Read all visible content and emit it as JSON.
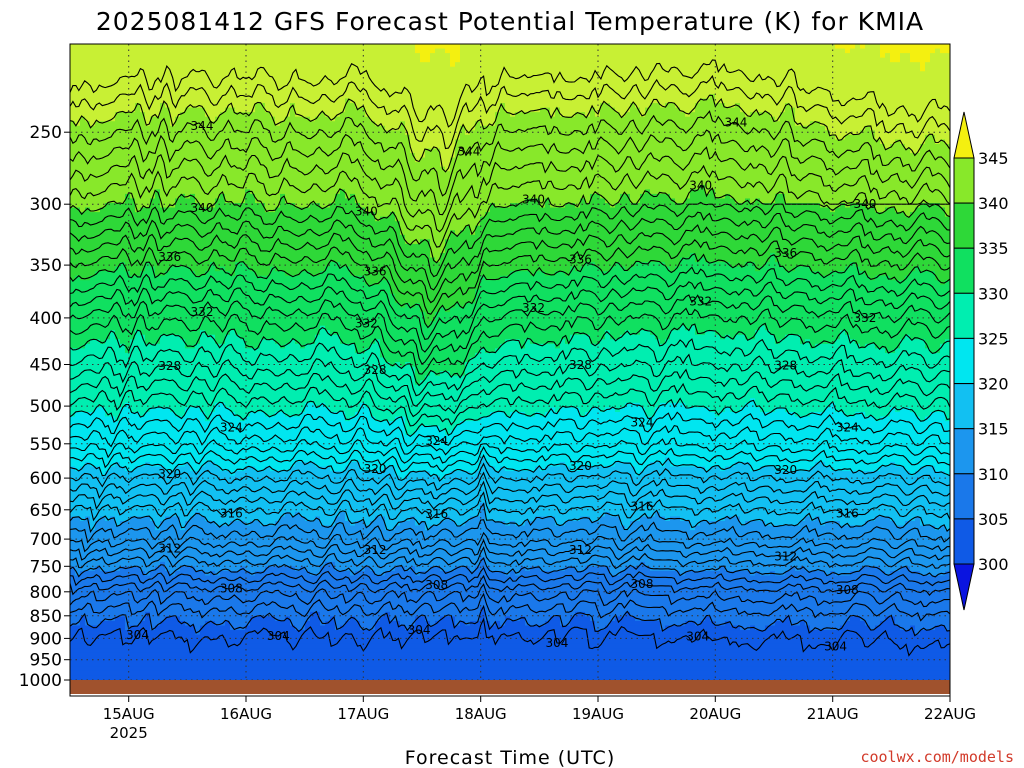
{
  "chart_data": {
    "type": "heatmap",
    "title": "2025081412 GFS Forecast Potential Temperature (K) for KMIA",
    "xlabel": "Forecast Time (UTC)",
    "ylabel": "",
    "x_ticks": [
      "15AUG",
      "16AUG",
      "17AUG",
      "18AUG",
      "19AUG",
      "20AUG",
      "21AUG",
      "22AUG"
    ],
    "x_tick_year": "2025",
    "x_range": [
      "2025-08-14 12Z",
      "2025-08-22 00Z"
    ],
    "y_ticks": [
      250,
      300,
      350,
      400,
      450,
      500,
      550,
      600,
      650,
      700,
      750,
      800,
      850,
      900,
      950,
      1000
    ],
    "y_range": [
      200,
      1000
    ],
    "y_scale": "log-pressure",
    "grid": true,
    "colorbar": {
      "ticks": [
        300,
        305,
        310,
        315,
        320,
        325,
        330,
        335,
        340,
        345
      ],
      "bins": [
        {
          "min": 295,
          "max": 300,
          "color": "#0a14e0"
        },
        {
          "min": 300,
          "max": 305,
          "color": "#0f5ae6"
        },
        {
          "min": 305,
          "max": 310,
          "color": "#1a78ea"
        },
        {
          "min": 310,
          "max": 315,
          "color": "#1c96ee"
        },
        {
          "min": 315,
          "max": 320,
          "color": "#12c0f2"
        },
        {
          "min": 320,
          "max": 325,
          "color": "#00e6f0"
        },
        {
          "min": 325,
          "max": 330,
          "color": "#00eeb0"
        },
        {
          "min": 330,
          "max": 335,
          "color": "#10e060"
        },
        {
          "min": 335,
          "max": 340,
          "color": "#2ed838"
        },
        {
          "min": 340,
          "max": 345,
          "color": "#88e82a"
        },
        {
          "min": 345,
          "max": 350,
          "color": "#c8f034"
        },
        {
          "min": 350,
          "max": 355,
          "color": "#f4f010"
        }
      ]
    },
    "profile": {
      "pressure": [
        1000,
        950,
        900,
        850,
        800,
        750,
        700,
        650,
        600,
        550,
        500,
        450,
        400,
        350,
        300,
        250,
        200
      ],
      "theta": [
        301.5,
        303,
        304,
        305.5,
        307.5,
        310.5,
        313.5,
        316,
        319,
        322.5,
        325.5,
        328.5,
        331.5,
        335.5,
        340,
        344,
        349
      ]
    },
    "contours": [
      {
        "level": 304,
        "labels": [
          "304",
          "304",
          "304",
          "304",
          "304",
          "304"
        ]
      },
      {
        "level": 308,
        "labels": [
          "308",
          "308",
          "308",
          "308"
        ]
      },
      {
        "level": 312,
        "labels": [
          "312",
          "312",
          "312",
          "312"
        ]
      },
      {
        "level": 316,
        "labels": [
          "316",
          "316",
          "316",
          "316"
        ]
      },
      {
        "level": 320,
        "labels": [
          "320",
          "320",
          "320",
          "320"
        ]
      },
      {
        "level": 324,
        "labels": [
          "324",
          "324",
          "324",
          "324"
        ]
      },
      {
        "level": 328,
        "labels": [
          "328",
          "328",
          "328",
          "328"
        ]
      },
      {
        "level": 332,
        "labels": [
          "332",
          "332",
          "332",
          "332",
          "332"
        ]
      },
      {
        "level": 336,
        "labels": [
          "336",
          "336",
          "336",
          "336"
        ]
      },
      {
        "level": 340,
        "labels": [
          "340",
          "340",
          "340",
          "340",
          "340"
        ]
      },
      {
        "level": 344,
        "labels": [
          "344",
          "344",
          "344"
        ]
      }
    ],
    "surface_color": "#a0522d"
  },
  "credit": "coolwx.com/models"
}
